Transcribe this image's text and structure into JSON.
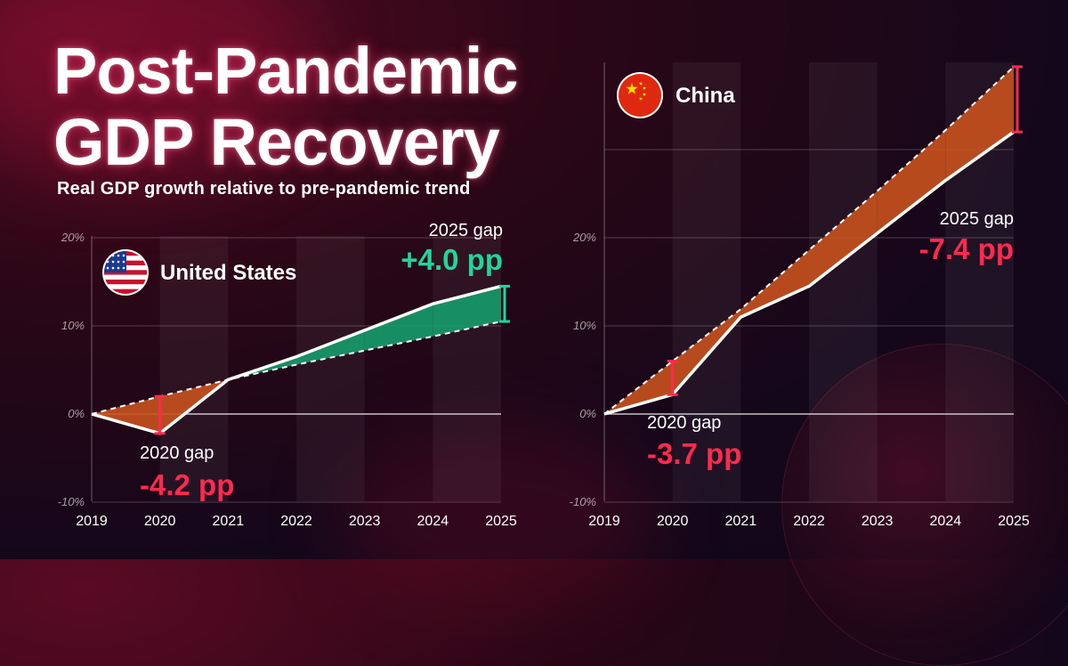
{
  "title_line1": "Post-Pandemic",
  "title_line2": "GDP Recovery",
  "subtitle": "Real GDP growth relative to pre-pandemic trend",
  "colors": {
    "red": "#ff2a4f",
    "green": "#1fd69a",
    "orange_fill": "#c8521e",
    "green_fill": "#169c6c",
    "line": "#ffffff"
  },
  "chart_data": [
    {
      "type": "line",
      "country": "United States",
      "flag_icon": "us-flag-icon",
      "x": [
        "2019",
        "2020",
        "2021",
        "2022",
        "2023",
        "2024",
        "2025"
      ],
      "y_ticks": [
        "20%",
        "10%",
        "0%",
        "-10%"
      ],
      "ylim": [
        -10,
        20
      ],
      "series": [
        {
          "values": [
            0,
            -2.2,
            3.9,
            6.5,
            9.5,
            12.5,
            14.5
          ]
        },
        {
          "values": [
            0,
            2.0,
            3.9,
            5.6,
            7.2,
            8.8,
            10.5
          ]
        }
      ],
      "annotations": {
        "gap_2020_label": "2020 gap",
        "gap_2020_value": "-4.2 pp",
        "gap_2025_label": "2025 gap",
        "gap_2025_value": "+4.0 pp"
      }
    },
    {
      "type": "line",
      "country": "China",
      "flag_icon": "china-flag-icon",
      "x": [
        "2019",
        "2020",
        "2021",
        "2022",
        "2023",
        "2024",
        "2025"
      ],
      "y_ticks": [
        "20%",
        "10%",
        "0%",
        "-10%"
      ],
      "ylim": [
        -10,
        40
      ],
      "series": [
        {
          "values": [
            0,
            2.2,
            11.0,
            14.5,
            20.5,
            26.5,
            32.0
          ]
        },
        {
          "values": [
            0,
            6.0,
            11.9,
            18.6,
            25.3,
            32.2,
            39.4
          ]
        }
      ],
      "annotations": {
        "gap_2020_label": "2020 gap",
        "gap_2020_value": "-3.7 pp",
        "gap_2025_label": "2025 gap",
        "gap_2025_value": "-7.4 pp"
      }
    }
  ]
}
